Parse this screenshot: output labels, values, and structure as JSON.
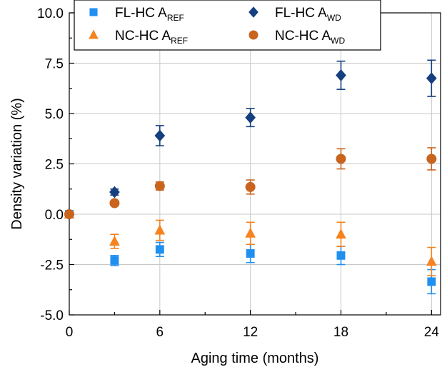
{
  "chart_data": {
    "type": "scatter",
    "xlabel": "Aging time (months)",
    "ylabel": "Density variation (%)",
    "xlim": [
      0,
      24.6
    ],
    "ylim": [
      -5.0,
      10.0
    ],
    "x_ticks": [
      0,
      6,
      12,
      18,
      24
    ],
    "x_tick_labels": [
      "0",
      "6",
      "12",
      "18",
      "24"
    ],
    "y_ticks": [
      -5.0,
      -2.5,
      0.0,
      2.5,
      5.0,
      7.5,
      10.0
    ],
    "y_tick_labels": [
      "-5.0",
      "-2.5",
      "0.0",
      "2.5",
      "5.0",
      "7.5",
      "10.0"
    ],
    "grid": true,
    "legend_position": "top",
    "series": [
      {
        "name": "FL-HC A",
        "name_sub": "REF",
        "marker": "square",
        "color": "#1f8ff0",
        "x": [
          0,
          3,
          6,
          12,
          18,
          24
        ],
        "y": [
          0.0,
          -2.3,
          -1.75,
          -1.95,
          -2.05,
          -3.35
        ],
        "err": [
          0.0,
          0.25,
          0.35,
          0.45,
          0.45,
          0.6
        ]
      },
      {
        "name": "NC-HC A",
        "name_sub": "REF",
        "marker": "triangle",
        "color": "#f5831f",
        "x": [
          0,
          3,
          6,
          12,
          18,
          24
        ],
        "y": [
          0.0,
          -1.35,
          -0.8,
          -0.95,
          -1.0,
          -2.35
        ],
        "err": [
          0.0,
          0.35,
          0.5,
          0.55,
          0.6,
          0.7
        ]
      },
      {
        "name": "FL-HC A",
        "name_sub": "WD",
        "marker": "diamond",
        "color": "#153f7f",
        "x": [
          0,
          3,
          6,
          12,
          18,
          24
        ],
        "y": [
          0.0,
          1.1,
          3.9,
          4.8,
          6.9,
          6.75
        ],
        "err": [
          0.0,
          0.15,
          0.5,
          0.45,
          0.7,
          0.9
        ]
      },
      {
        "name": "NC-HC A",
        "name_sub": "WD",
        "marker": "circle",
        "color": "#c8641e",
        "x": [
          0,
          3,
          6,
          12,
          18,
          24
        ],
        "y": [
          0.0,
          0.55,
          1.4,
          1.35,
          2.75,
          2.75
        ],
        "err": [
          0.0,
          0.1,
          0.2,
          0.35,
          0.5,
          0.55
        ]
      }
    ]
  }
}
